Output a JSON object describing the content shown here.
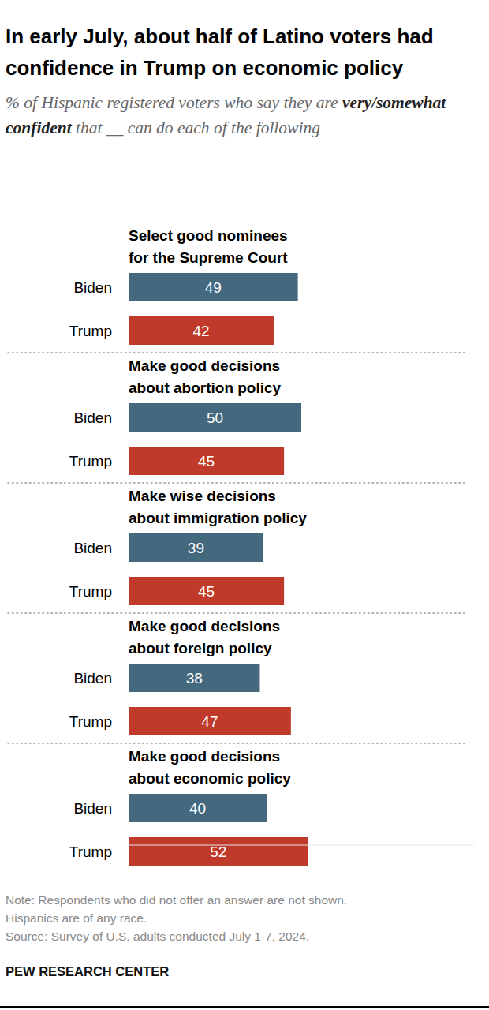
{
  "chart_data": {
    "type": "bar",
    "orientation": "horizontal",
    "title": "In early July, about half of Latino voters had confidence in Trump on economic policy",
    "subtitle": [
      "% of Hispanic registered voters who say they are ",
      "very/somewhat confident",
      " that __ can do each of the following"
    ],
    "categories": [
      "Select good nominees\nfor the Supreme Court",
      "Make good decisions\nabout abortion policy",
      "Make wise decisions\nabout immigration policy",
      "Make good decisions\nabout foreign policy",
      "Make good decisions\nabout economic policy"
    ],
    "series": [
      {
        "name": "Biden",
        "color": "#44697f",
        "values": [
          49,
          50,
          39,
          38,
          40
        ]
      },
      {
        "name": "Trump",
        "color": "#bf3a2a",
        "values": [
          42,
          45,
          45,
          47,
          52
        ]
      }
    ],
    "xlim": [
      0,
      100
    ],
    "data_labels": true,
    "tick_labels": false,
    "grid": false,
    "notes": [
      "Note: Respondents who did not offer an answer are not shown.",
      "Hispanics are of any race.",
      "Source: Survey of U.S. adults conducted July 1-7, 2024."
    ],
    "credit": "PEW RESEARCH CENTER"
  }
}
